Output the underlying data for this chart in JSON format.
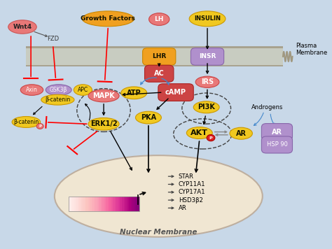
{
  "bg_color": "#c8d8e8",
  "nuclear_label": "Nuclear Membrane",
  "gene_labels": [
    "STAR",
    "CYP11A1",
    "CYP17A1",
    "HSD3β2",
    "AR"
  ],
  "plasma_membrane_label": "Plasma\nMembrane"
}
